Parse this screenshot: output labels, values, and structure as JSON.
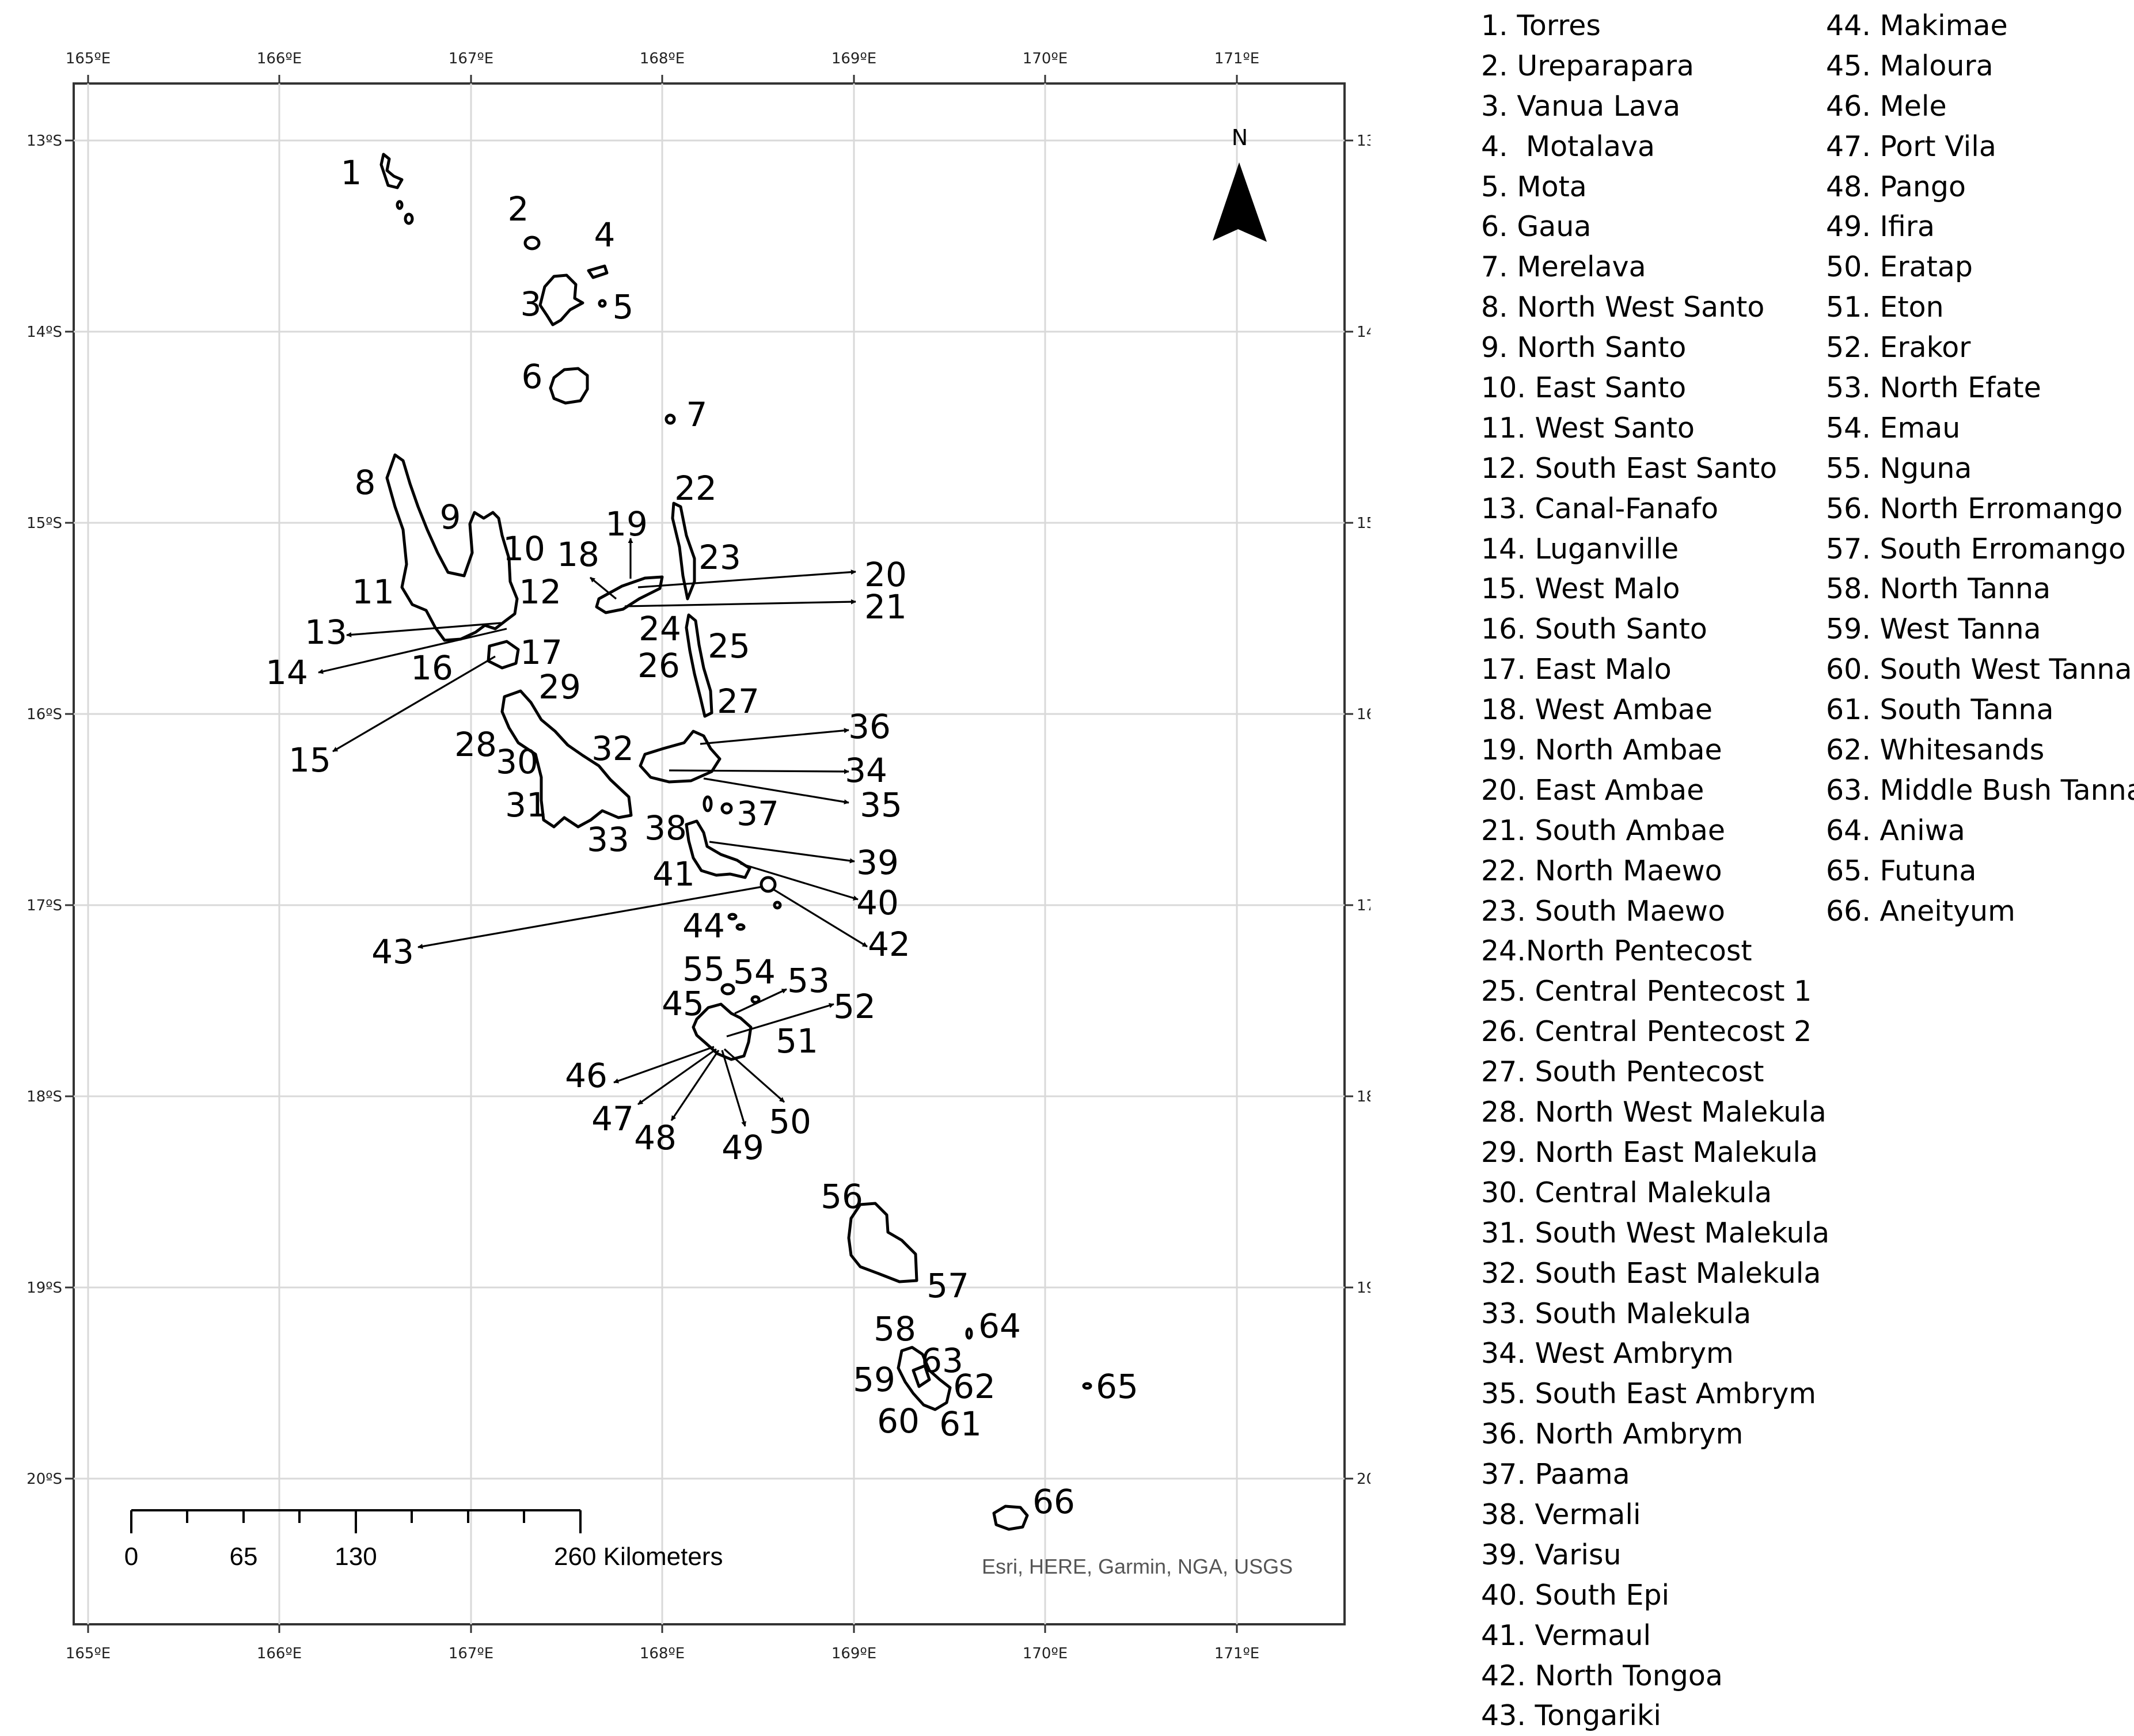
{
  "map": {
    "lon_labels": [
      "165ºE",
      "166ºE",
      "167ºE",
      "168ºE",
      "169ºE",
      "170ºE",
      "171ºE"
    ],
    "lat_labels": [
      "13ºS",
      "14ºS",
      "15ºS",
      "16ºS",
      "17ºS",
      "18ºS",
      "19ºS",
      "20ºS"
    ],
    "north_label": "N",
    "scale_bar": {
      "labels": [
        "0",
        "65",
        "130",
        "260 Kilometers"
      ]
    },
    "attribution": "Esri, HERE, Garmin, NGA, USGS",
    "site_numbers": [
      "1",
      "2",
      "3",
      "4",
      "5",
      "6",
      "7",
      "8",
      "9",
      "10",
      "11",
      "12",
      "13",
      "14",
      "15",
      "16",
      "17",
      "18",
      "19",
      "20",
      "21",
      "22",
      "23",
      "24",
      "25",
      "26",
      "27",
      "28",
      "29",
      "30",
      "31",
      "32",
      "33",
      "34",
      "35",
      "36",
      "37",
      "38",
      "39",
      "40",
      "41",
      "42",
      "43",
      "44",
      "45",
      "46",
      "47",
      "48",
      "49",
      "50",
      "51",
      "52",
      "53",
      "54",
      "55",
      "56",
      "57",
      "58",
      "59",
      "60",
      "61",
      "62",
      "63",
      "64",
      "65",
      "66"
    ]
  },
  "legend": {
    "column1": [
      "1. Torres",
      "2. Ureparapara",
      "3. Vanua Lava",
      "4.  Motalava",
      "5. Mota",
      "6. Gaua",
      "7. Merelava",
      "8. North West Santo",
      "9. North Santo",
      "10. East Santo",
      "11. West Santo",
      "12. South East Santo",
      "13. Canal-Fanafo",
      "14. Luganville",
      "15. West Malo",
      "16. South Santo",
      "17. East Malo",
      "18. West Ambae",
      "19. North Ambae",
      "20. East Ambae",
      "21. South Ambae",
      "22. North Maewo",
      "23. South Maewo",
      "24.North Pentecost",
      "25. Central Pentecost 1",
      "26. Central Pentecost 2",
      "27. South Pentecost",
      "28. North West Malekula",
      "29. North East Malekula",
      "30. Central Malekula",
      "31. South West Malekula",
      "32. South East Malekula",
      "33. South Malekula",
      "34. West Ambrym",
      "35. South East Ambrym",
      "36. North Ambrym",
      "37. Paama",
      "38. Vermali",
      "39. Varisu",
      "40. South Epi",
      "41. Vermaul",
      "42. North Tongoa",
      "43. Tongariki"
    ],
    "column2": [
      "44. Makimae",
      "45. Maloura",
      "46. Mele",
      "47. Port Vila",
      "48. Pango",
      "49. Ifira",
      "50. Eratap",
      "51. Eton",
      "52. Erakor",
      "53. North Efate",
      "54. Emau",
      "55. Nguna",
      "56. North Erromango",
      "57. South Erromango",
      "58. North Tanna",
      "59. West Tanna",
      "60. South West Tanna",
      "61. South Tanna",
      "62. Whitesands",
      "63. Middle Bush Tanna",
      "64. Aniwa",
      "65. Futuna",
      "66. Aneityum"
    ]
  }
}
